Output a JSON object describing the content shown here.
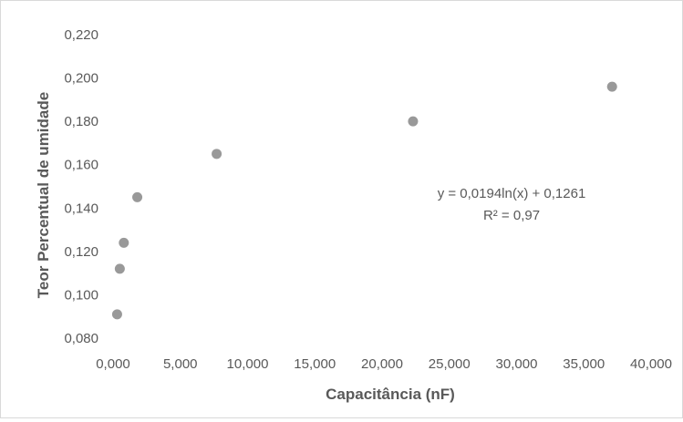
{
  "chart_data": {
    "type": "scatter",
    "title": "",
    "xlabel": "Capacitância (nF)",
    "ylabel": "Teor Percentual de umidade",
    "xlim": [
      0,
      40000
    ],
    "ylim": [
      0.08,
      0.22
    ],
    "x_ticks": [
      "0,000",
      "5,000",
      "10,000",
      "15,000",
      "20,000",
      "25,000",
      "30,000",
      "35,000",
      "40,000"
    ],
    "y_ticks": [
      "0,080",
      "0,100",
      "0,120",
      "0,140",
      "0,160",
      "0,180",
      "0,200",
      "0,220"
    ],
    "grid": false,
    "legend": "none",
    "series": [
      {
        "color": "#999999",
        "points": [
          {
            "x": 300,
            "y": 0.091
          },
          {
            "x": 500,
            "y": 0.112
          },
          {
            "x": 800,
            "y": 0.124
          },
          {
            "x": 1800,
            "y": 0.145
          },
          {
            "x": 7700,
            "y": 0.165
          },
          {
            "x": 22300,
            "y": 0.18
          },
          {
            "x": 37100,
            "y": 0.196
          }
        ]
      }
    ],
    "trendline": {
      "type": "logarithmic",
      "coef_a": 0.0194,
      "coef_b": 0.1261,
      "style": "dotted",
      "color": "#404040",
      "equation_label": "y = 0,0194ln(x) + 0,1261",
      "r2_label": "R² = 0,97"
    }
  }
}
